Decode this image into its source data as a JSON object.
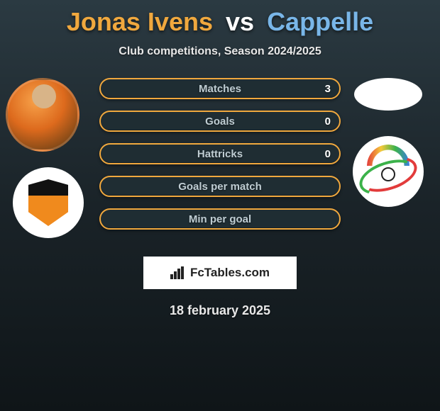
{
  "title": {
    "player1": "Jonas Ivens",
    "vs": "vs",
    "player2": "Cappelle",
    "player1_color": "#f0a83e",
    "vs_color": "#ffffff",
    "player2_color": "#79b6e8"
  },
  "subtitle": "Club competitions, Season 2024/2025",
  "stats": {
    "background_color": "#1f2d33",
    "border_color": "#f0a83e",
    "label_color": "#bfcdd3",
    "rows": [
      {
        "label": "Matches",
        "left_value": "3",
        "show_value": true
      },
      {
        "label": "Goals",
        "left_value": "0",
        "show_value": true
      },
      {
        "label": "Hattricks",
        "left_value": "0",
        "show_value": true
      },
      {
        "label": "Goals per match",
        "left_value": "",
        "show_value": false
      },
      {
        "label": "Min per goal",
        "left_value": "",
        "show_value": false
      }
    ]
  },
  "brand": "FcTables.com",
  "date": "18 february 2025",
  "background": {
    "gradient_top": "#2b3a42",
    "gradient_mid": "#1a2328",
    "gradient_bottom": "#0f1518"
  }
}
